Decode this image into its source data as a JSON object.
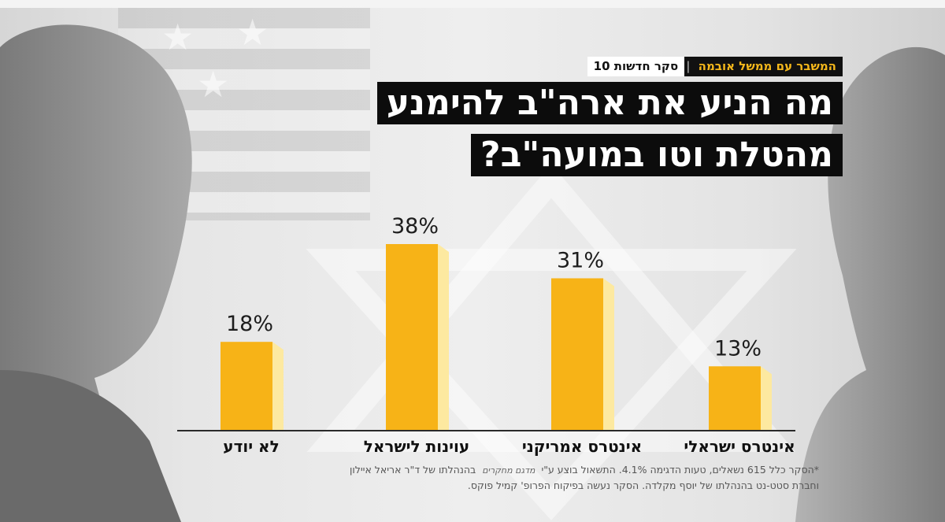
{
  "header": {
    "kicker_main": "המשבר עם ממשל אובמה",
    "kicker_separator": "|",
    "kicker_poll": "סקר חדשות 10"
  },
  "title": {
    "line1": "מה הניע את ארה\"ב להימנע",
    "line2": "מהטלת וטו במועה\"ב?"
  },
  "chart_data": {
    "type": "bar",
    "title": "מה הניע את ארה\"ב להימנע מהטלת וטו במועה\"ב?",
    "categories": [
      "לא יודע",
      "עוינות לישראל",
      "אינטרס אמריקני",
      "אינטרס ישראלי"
    ],
    "values": [
      18,
      38,
      31,
      13
    ],
    "value_labels": [
      "18%",
      "38%",
      "31%",
      "13%"
    ],
    "unit": "%",
    "ylim": [
      0,
      40
    ],
    "grid": false,
    "legend": "none",
    "bar_color": "#f7b317",
    "bar_highlight": "#fde9a0"
  },
  "footnote": {
    "line1_a": "*הסקר כלל 615 נשאלים, טעות הדגימה 4.1%. התשאול בוצע ע\"י",
    "brand": "מדגם מחקרים",
    "line1_b": "בהנהלתו של ד\"ר אריאל איילון",
    "line2": "וחברת סטט-נט בהנהלתו של יוסף מקלדה. הסקר נעשה בפיקוח הפרופ' קמיל פוקס."
  },
  "colors": {
    "accent": "#f5b81b",
    "title_bg": "#0c0c0c",
    "title_text": "#ffffff"
  }
}
